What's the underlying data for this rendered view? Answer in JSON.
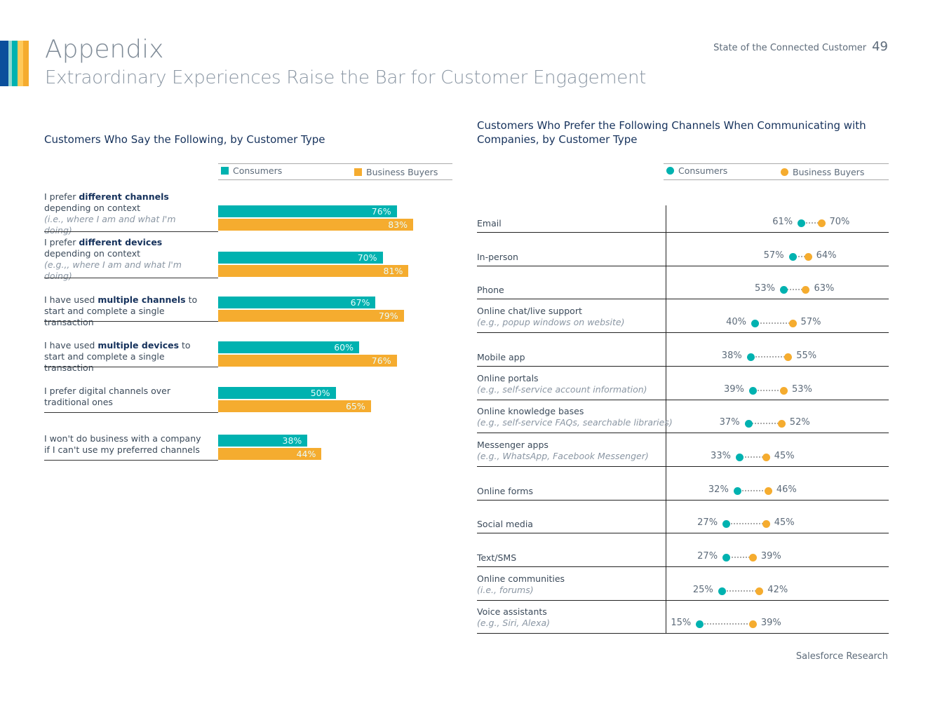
{
  "header": {
    "title": "Appendix",
    "subtitle": "Extraordinary Experiences Raise the Bar for Customer Engagement",
    "report": "State of the Connected Customer",
    "page": "49"
  },
  "footer": "Salesforce Research",
  "colors": {
    "consumers": "#00b2b0",
    "business": "#f5ac2f",
    "stripes": [
      "#0b4f9c",
      "#8fd7d3",
      "#00b2b0",
      "#ffc95a",
      "#f5ac2f"
    ]
  },
  "chart_data": [
    {
      "type": "bar",
      "title": "Customers Who Say the Following, by Customer Type",
      "legend": [
        "Consumers",
        "Business Buyers"
      ],
      "categories": [
        {
          "pre": "I prefer ",
          "bold": "different channels",
          "post": " depending on context",
          "note": "(i.e., where I am and what I'm doing)"
        },
        {
          "pre": "I prefer ",
          "bold": "different devices",
          "post": " depending on context",
          "note": "(e.g.,, where I am and what I'm doing)"
        },
        {
          "pre": "I have used ",
          "bold": "multiple channels",
          "post": " to start and complete a single transaction",
          "note": ""
        },
        {
          "pre": "I have used ",
          "bold": "multiple devices",
          "post": " to start and complete a single transaction",
          "note": ""
        },
        {
          "pre": "I prefer digital channels over traditional ones",
          "bold": "",
          "post": "",
          "note": ""
        },
        {
          "pre": "I won't do business with a company if I can't use my preferred channels",
          "bold": "",
          "post": "",
          "note": ""
        }
      ],
      "series": [
        {
          "name": "Consumers",
          "values": [
            76,
            70,
            67,
            60,
            50,
            38
          ]
        },
        {
          "name": "Business Buyers",
          "values": [
            83,
            81,
            79,
            76,
            65,
            44
          ]
        }
      ],
      "unit": "%"
    },
    {
      "type": "scatter",
      "title": "Customers Who Prefer the Following Channels When Communicating with Companies, by Customer Type",
      "legend": [
        "Consumers",
        "Business Buyers"
      ],
      "categories": [
        {
          "label": "Email",
          "note": ""
        },
        {
          "label": "In-person",
          "note": ""
        },
        {
          "label": "Phone",
          "note": ""
        },
        {
          "label": "Online chat/live support",
          "note": "(e.g., popup windows on website)"
        },
        {
          "label": "Mobile app",
          "note": ""
        },
        {
          "label": "Online portals",
          "note": "(e.g., self-service account information)"
        },
        {
          "label": "Online knowledge bases",
          "note": "(e.g., self-service FAQs, searchable libraries)"
        },
        {
          "label": "Messenger apps",
          "note": "(e.g., WhatsApp, Facebook Messenger)"
        },
        {
          "label": "Online forms",
          "note": ""
        },
        {
          "label": "Social media",
          "note": ""
        },
        {
          "label": "Text/SMS",
          "note": ""
        },
        {
          "label": "Online communities",
          "note": "(i.e., forums)"
        },
        {
          "label": "Voice assistants",
          "note": "(e.g., Siri, Alexa)"
        }
      ],
      "series": [
        {
          "name": "Consumers",
          "values": [
            61,
            57,
            53,
            40,
            38,
            39,
            37,
            33,
            32,
            27,
            27,
            25,
            15
          ]
        },
        {
          "name": "Business Buyers",
          "values": [
            70,
            64,
            63,
            57,
            55,
            53,
            52,
            45,
            46,
            45,
            39,
            42,
            39
          ]
        }
      ],
      "unit": "%"
    }
  ]
}
